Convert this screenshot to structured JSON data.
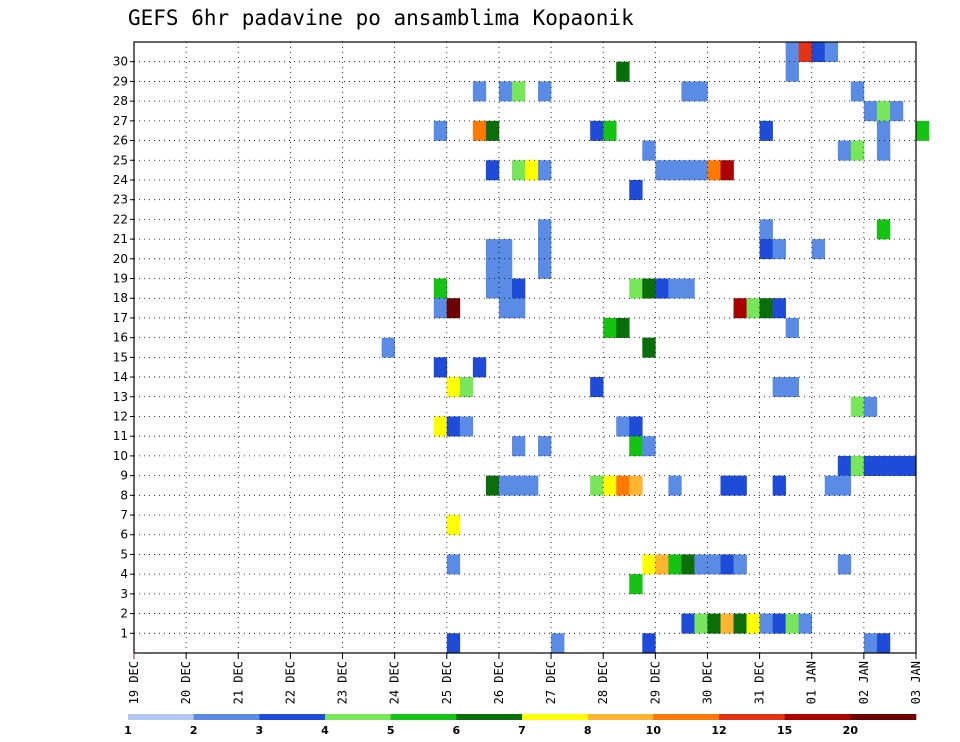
{
  "chart_data": {
    "type": "heatmap",
    "title": "GEFS 6hr padavine po ansamblima Kopaonik",
    "x_ticks": [
      "19 DEC",
      "20 DEC",
      "21 DEC",
      "22 DEC",
      "23 DEC",
      "24 DEC",
      "25 DEC",
      "26 DEC",
      "27 DEC",
      "28 DEC",
      "29 DEC",
      "30 DEC",
      "31 DEC",
      "01 JAN",
      "02 JAN",
      "03 JAN"
    ],
    "y_ticks": [
      "1",
      "2",
      "3",
      "4",
      "5",
      "6",
      "7",
      "8",
      "9",
      "10",
      "11",
      "12",
      "13",
      "14",
      "15",
      "16",
      "17",
      "18",
      "19",
      "20",
      "21",
      "22",
      "23",
      "24",
      "25",
      "26",
      "27",
      "28",
      "29",
      "30"
    ],
    "x_axis": "6-hourly steps from 19 DEC 00z to 03 JAN 00z",
    "y_axis": "ensemble member 1-30",
    "grid": true,
    "colorbar": {
      "position": "bottom",
      "labels": [
        "1",
        "2",
        "3",
        "4",
        "5",
        "6",
        "7",
        "8",
        "10",
        "12",
        "15",
        "20"
      ],
      "colors": [
        "#b4c8f5",
        "#5a8ce6",
        "#1e4bd7",
        "#78e65a",
        "#14c314",
        "#0a6e0a",
        "#ffff00",
        "#ffb432",
        "#ff7800",
        "#e63214",
        "#aa0000",
        "#6e0000"
      ]
    },
    "cells": [
      [
        50,
        30,
        1
      ],
      [
        51,
        30,
        9
      ],
      [
        52,
        30,
        2
      ],
      [
        53,
        30,
        1
      ],
      [
        37,
        29,
        5
      ],
      [
        50,
        29,
        1
      ],
      [
        26,
        28,
        1
      ],
      [
        28,
        28,
        1
      ],
      [
        29,
        28,
        3
      ],
      [
        31,
        28,
        1
      ],
      [
        42,
        28,
        1
      ],
      [
        43,
        28,
        1
      ],
      [
        55,
        28,
        1
      ],
      [
        56,
        27,
        1
      ],
      [
        57,
        27,
        3
      ],
      [
        58,
        27,
        1
      ],
      [
        23,
        26,
        1
      ],
      [
        26,
        26,
        8
      ],
      [
        27,
        26,
        5
      ],
      [
        35,
        26,
        2
      ],
      [
        36,
        26,
        4
      ],
      [
        48,
        26,
        2
      ],
      [
        57,
        26,
        1
      ],
      [
        60,
        26,
        4
      ],
      [
        39,
        25,
        1
      ],
      [
        54,
        25,
        1
      ],
      [
        55,
        25,
        3
      ],
      [
        57,
        25,
        1
      ],
      [
        27,
        24,
        2
      ],
      [
        29,
        24,
        3
      ],
      [
        30,
        24,
        6
      ],
      [
        31,
        24,
        1
      ],
      [
        40,
        24,
        1
      ],
      [
        41,
        24,
        1
      ],
      [
        42,
        24,
        1
      ],
      [
        43,
        24,
        1
      ],
      [
        44,
        24,
        8
      ],
      [
        45,
        24,
        10
      ],
      [
        38,
        23,
        2
      ],
      [
        31,
        21,
        1
      ],
      [
        48,
        21,
        1
      ],
      [
        57,
        21,
        4
      ],
      [
        27,
        20,
        1
      ],
      [
        28,
        20,
        1
      ],
      [
        31,
        20,
        1
      ],
      [
        48,
        20,
        2
      ],
      [
        49,
        20,
        1
      ],
      [
        52,
        20,
        1
      ],
      [
        27,
        19,
        1
      ],
      [
        28,
        19,
        1
      ],
      [
        31,
        19,
        1
      ],
      [
        28,
        18,
        1
      ],
      [
        23,
        18,
        4
      ],
      [
        27,
        18,
        1
      ],
      [
        29,
        18,
        2
      ],
      [
        38,
        18,
        3
      ],
      [
        39,
        18,
        5
      ],
      [
        40,
        18,
        2
      ],
      [
        41,
        18,
        1
      ],
      [
        42,
        18,
        1
      ],
      [
        23,
        17,
        1
      ],
      [
        24,
        17,
        11
      ],
      [
        28,
        17,
        1
      ],
      [
        29,
        17,
        1
      ],
      [
        46,
        17,
        10
      ],
      [
        47,
        17,
        3
      ],
      [
        48,
        17,
        5
      ],
      [
        49,
        17,
        2
      ],
      [
        36,
        16,
        4
      ],
      [
        37,
        16,
        5
      ],
      [
        50,
        16,
        1
      ],
      [
        19,
        15,
        1
      ],
      [
        39,
        15,
        5
      ],
      [
        23,
        14,
        2
      ],
      [
        26,
        14,
        2
      ],
      [
        24,
        13,
        6
      ],
      [
        25,
        13,
        3
      ],
      [
        35,
        13,
        2
      ],
      [
        49,
        13,
        1
      ],
      [
        50,
        13,
        1
      ],
      [
        55,
        12,
        3
      ],
      [
        56,
        12,
        1
      ],
      [
        23,
        11,
        6
      ],
      [
        24,
        11,
        2
      ],
      [
        25,
        11,
        1
      ],
      [
        37,
        11,
        1
      ],
      [
        38,
        11,
        2
      ],
      [
        29,
        10,
        1
      ],
      [
        31,
        10,
        1
      ],
      [
        38,
        10,
        4
      ],
      [
        39,
        10,
        1
      ],
      [
        54,
        9,
        2
      ],
      [
        55,
        9,
        3
      ],
      [
        56,
        9,
        2
      ],
      [
        57,
        9,
        2
      ],
      [
        58,
        9,
        2
      ],
      [
        59,
        9,
        2
      ],
      [
        27,
        8,
        5
      ],
      [
        28,
        8,
        1
      ],
      [
        29,
        8,
        1
      ],
      [
        30,
        8,
        1
      ],
      [
        35,
        8,
        3
      ],
      [
        36,
        8,
        6
      ],
      [
        37,
        8,
        8
      ],
      [
        38,
        8,
        7
      ],
      [
        41,
        8,
        1
      ],
      [
        45,
        8,
        2
      ],
      [
        46,
        8,
        2
      ],
      [
        49,
        8,
        2
      ],
      [
        53,
        8,
        1
      ],
      [
        54,
        8,
        1
      ],
      [
        24,
        6,
        6
      ],
      [
        24,
        4,
        1
      ],
      [
        39,
        4,
        6
      ],
      [
        40,
        4,
        7
      ],
      [
        41,
        4,
        4
      ],
      [
        42,
        4,
        5
      ],
      [
        43,
        4,
        1
      ],
      [
        44,
        4,
        1
      ],
      [
        45,
        4,
        2
      ],
      [
        46,
        4,
        1
      ],
      [
        54,
        4,
        1
      ],
      [
        38,
        3,
        4
      ],
      [
        42,
        1,
        2
      ],
      [
        43,
        1,
        3
      ],
      [
        44,
        1,
        5
      ],
      [
        45,
        1,
        7
      ],
      [
        46,
        1,
        5
      ],
      [
        47,
        1,
        6
      ],
      [
        48,
        1,
        1
      ],
      [
        49,
        1,
        2
      ],
      [
        50,
        1,
        3
      ],
      [
        51,
        1,
        1
      ],
      [
        24,
        0,
        2
      ],
      [
        32,
        0,
        1
      ],
      [
        39,
        0,
        2
      ],
      [
        56,
        0,
        1
      ],
      [
        57,
        0,
        2
      ]
    ]
  }
}
